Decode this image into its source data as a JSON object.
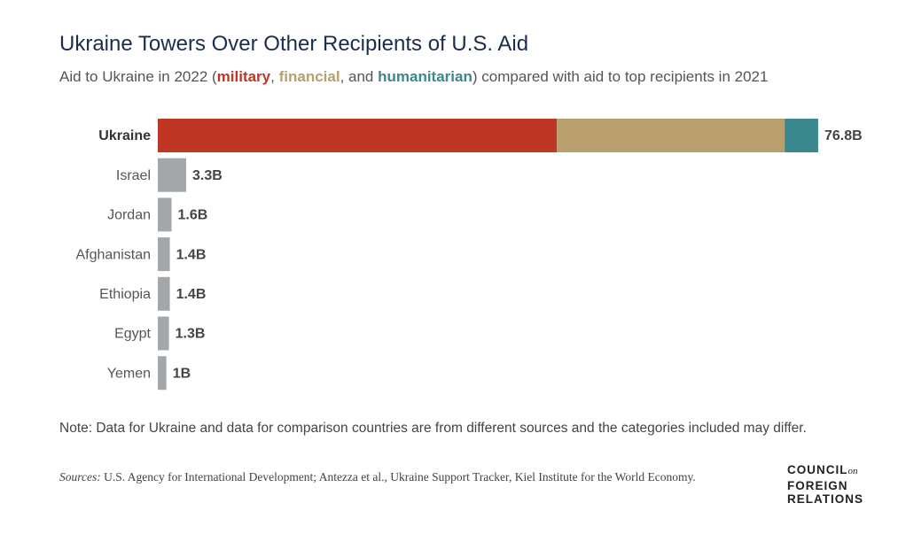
{
  "chart_data": {
    "type": "bar",
    "orientation": "horizontal",
    "title": "Ukraine Towers Over Other Recipients of U.S. Aid",
    "subtitle_parts": [
      "Aid to Ukraine in 2022 (",
      ", ",
      ", and ",
      ") compared with aid to top recipients in 2021"
    ],
    "categories": [
      "Ukraine",
      "Israel",
      "Jordan",
      "Afghanistan",
      "Ethiopia",
      "Egypt",
      "Yemen"
    ],
    "series": [
      {
        "name": "military",
        "color": "#bf3624",
        "values": [
          46.4,
          null,
          null,
          null,
          null,
          null,
          null
        ]
      },
      {
        "name": "financial",
        "color": "#b89f6d",
        "values": [
          26.5,
          null,
          null,
          null,
          null,
          null,
          null
        ]
      },
      {
        "name": "humanitarian",
        "color": "#3a878d",
        "values": [
          3.9,
          null,
          null,
          null,
          null,
          null,
          null
        ]
      }
    ],
    "values": [
      76.8,
      3.3,
      1.6,
      1.4,
      1.4,
      1.3,
      1
    ],
    "value_labels": [
      "76.8B",
      "3.3B",
      "1.6B",
      "1.4B",
      "1.4B",
      "1.3B",
      "1B"
    ],
    "color": "#a3a7aa",
    "xlim": [
      0,
      80
    ]
  },
  "note": "Note: Data for Ukraine and data for comparison countries are from different sources and the categories included may differ.",
  "sources_label": "Sources:",
  "sources": "U.S. Agency for International Development; Antezza et al., Ukraine Support Tracker, Kiel Institute for the World Economy.",
  "logo": [
    "COUNCIL",
    "on",
    "FOREIGN",
    "RELATIONS"
  ]
}
